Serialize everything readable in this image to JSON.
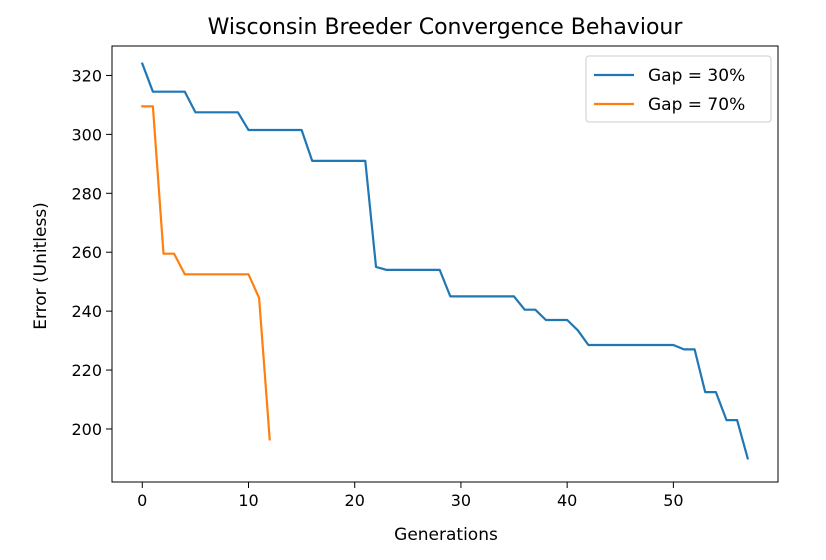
{
  "chart_data": {
    "type": "line",
    "title": "Wisconsin Breeder Convergence Behaviour",
    "xlabel": "Generations",
    "ylabel": "Error (Unitless)",
    "xlim": [
      -2.85,
      59.85
    ],
    "ylim": [
      182,
      330
    ],
    "xticks": [
      0,
      10,
      20,
      30,
      40,
      50
    ],
    "yticks": [
      200,
      220,
      240,
      260,
      280,
      300,
      320
    ],
    "grid": false,
    "legend_position": "top-right",
    "series": [
      {
        "name": "Gap = 30%",
        "color": "#1f77b4",
        "x": [
          0,
          1,
          2,
          3,
          4,
          5,
          6,
          7,
          8,
          9,
          10,
          11,
          12,
          13,
          14,
          15,
          16,
          17,
          18,
          19,
          20,
          21,
          22,
          23,
          24,
          25,
          26,
          27,
          28,
          29,
          30,
          31,
          32,
          33,
          34,
          35,
          36,
          37,
          38,
          39,
          40,
          41,
          42,
          43,
          44,
          45,
          46,
          47,
          48,
          49,
          50,
          51,
          52,
          53,
          54,
          55,
          56,
          57
        ],
        "y": [
          324,
          314.5,
          314.5,
          314.5,
          314.5,
          307.5,
          307.5,
          307.5,
          307.5,
          307.5,
          301.5,
          301.5,
          301.5,
          301.5,
          301.5,
          301.5,
          291,
          291,
          291,
          291,
          291,
          291,
          255,
          254,
          254,
          254,
          254,
          254,
          254,
          245,
          245,
          245,
          245,
          245,
          245,
          245,
          240.5,
          240.5,
          237,
          237,
          237,
          233.5,
          228.5,
          228.5,
          228.5,
          228.5,
          228.5,
          228.5,
          228.5,
          228.5,
          228.5,
          227,
          227,
          212.5,
          212.5,
          203,
          203,
          190
        ]
      },
      {
        "name": "Gap = 70%",
        "color": "#ff7f0e",
        "x": [
          0,
          1,
          2,
          3,
          4,
          5,
          6,
          7,
          8,
          9,
          10,
          11,
          12
        ],
        "y": [
          309.5,
          309.5,
          259.5,
          259.5,
          252.5,
          252.5,
          252.5,
          252.5,
          252.5,
          252.5,
          252.5,
          244.5,
          196.5
        ]
      }
    ]
  }
}
